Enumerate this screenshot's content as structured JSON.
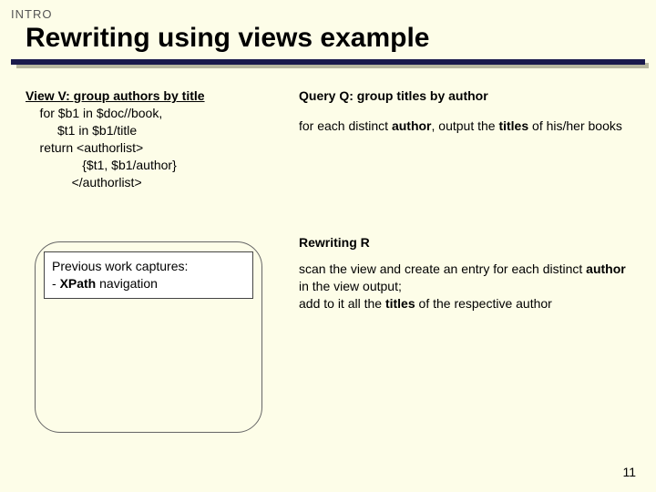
{
  "header": {
    "label": "INTRO",
    "title": "Rewriting using views example"
  },
  "left": {
    "view_heading": "View V: group authors by title",
    "lines": [
      "    for $b1 in $doc//book,",
      "         $t1 in $b1/title",
      "    return <authorlist>",
      "                {$t1, $b1/author}",
      "             </authorlist>"
    ]
  },
  "capture": {
    "line1": "Previous work captures:",
    "line2_prefix": "- ",
    "line2_bold": "XPath",
    "line2_suffix": " navigation"
  },
  "right": {
    "query_heading": "Query Q: group titles by author",
    "query_body_pre": "for each distinct ",
    "query_body_b1": "author",
    "query_body_mid": ", output the ",
    "query_body_b2": "titles",
    "query_body_post": " of his/her books",
    "rewrite_heading": "Rewriting R",
    "rewrite_l1_pre": "scan the view and create an entry for each distinct ",
    "rewrite_l1_b": "author",
    "rewrite_l1_post": " in the view output;",
    "rewrite_l2_pre": "add to it all the ",
    "rewrite_l2_b": "titles",
    "rewrite_l2_post": " of the respective author"
  },
  "page_number": "11",
  "colors": {
    "background": "#fdfde8",
    "rule": "#1a1a4d",
    "rule_shadow": "#b8b8a0"
  }
}
